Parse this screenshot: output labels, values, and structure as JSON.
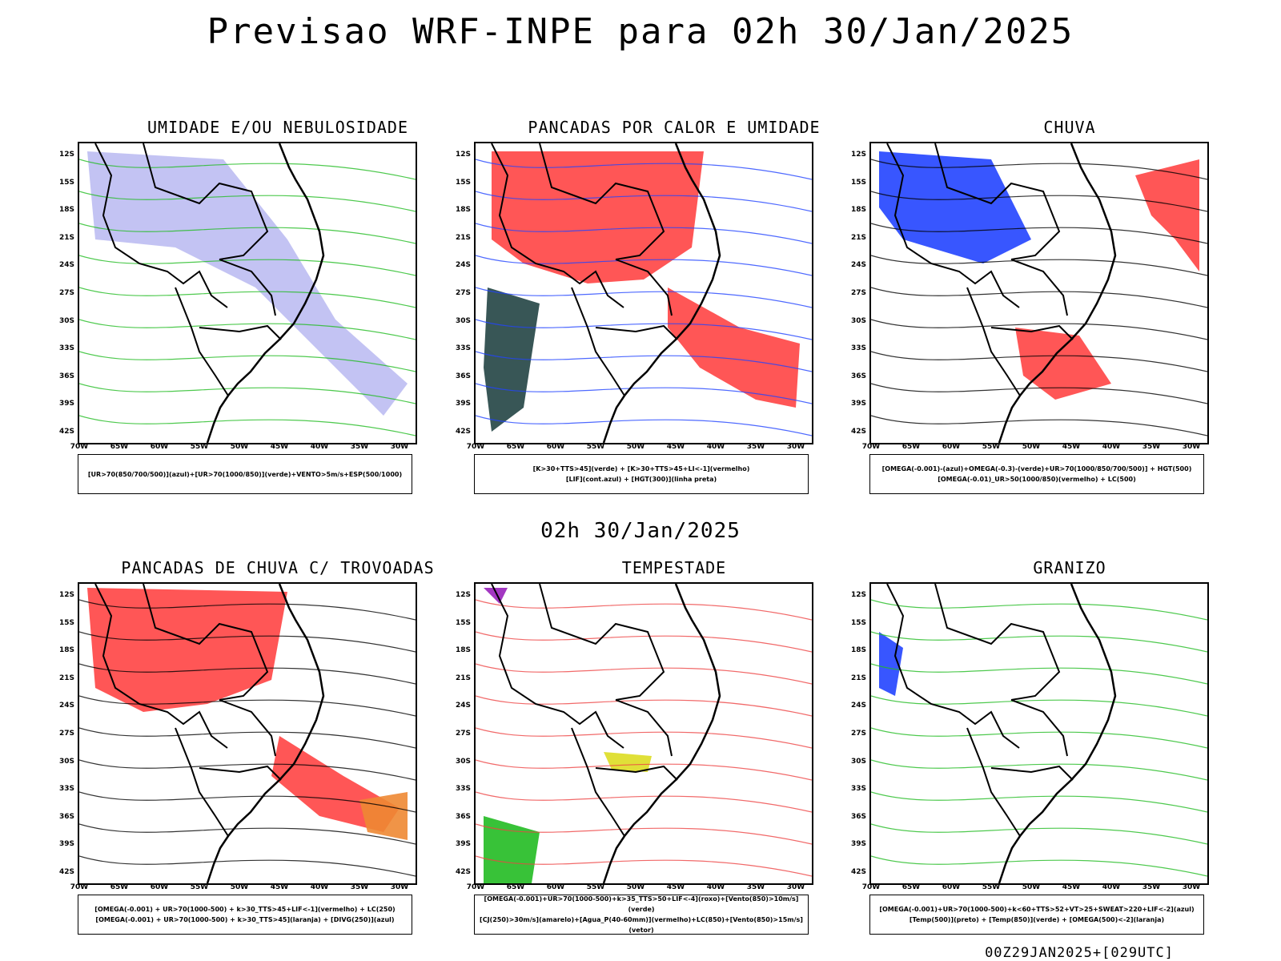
{
  "title": "Previsao WRF-INPE  para 02h 30/Jan/2025",
  "mid_title": "02h 30/Jan/2025",
  "footer": "00Z29JAN2025+[029UTC]",
  "lat_ticks": [
    "12S",
    "15S",
    "18S",
    "21S",
    "24S",
    "27S",
    "30S",
    "33S",
    "36S",
    "39S",
    "42S"
  ],
  "lon_ticks": [
    "70W",
    "65W",
    "60W",
    "55W",
    "50W",
    "45W",
    "40W",
    "35W",
    "30W"
  ],
  "panels": [
    {
      "title": "UMIDADE E/OU NEBULOSIDADE",
      "legend": [
        "[UR>70(850/700/500)](azul)+[UR>70(1000/850)](verde)+VENTO>5m/s+ESP(500/1000)"
      ]
    },
    {
      "title": "PANCADAS POR CALOR E UMIDADE",
      "legend": [
        "[K>30+TTS>45](verde) + [K>30+TTS>45+LI<-1](vermelho)",
        "[LIF](cont.azul) + [HGT(300)](linha preta)"
      ]
    },
    {
      "title": "CHUVA",
      "legend": [
        "[OMEGA(-0.001)-(azul)+OMEGA(-0.3)-(verde)+UR>70(1000/850/700/500)] + HGT(500)",
        "[OMEGA(-0.01)_UR>50(1000/850)(vermelho) + LC(500)"
      ]
    },
    {
      "title": "PANCADAS DE CHUVA C/ TROVOADAS",
      "legend": [
        "[OMEGA(-0.001) + UR>70(1000-500) + k>30_TTS>45+LIF<-1](vermelho) + LC(250)",
        "[OMEGA(-0.001) + UR>70(1000-500) + k>30_TTS>45](laranja) + [DIVG(250)](azul)"
      ]
    },
    {
      "title": "TEMPESTADE",
      "legend": [
        "[OMEGA(-0.001)+UR>70(1000-500)+k>35_TTS>50+LIF<-4](roxo)+[Vento(850)>10m/s](verde)",
        "[CJ(250)>30m/s](amarelo)+[Agua_P(40-60mm)](vermelho)+LC(850)+[Vento(850)>15m/s](vetor)"
      ]
    },
    {
      "title": "GRANIZO",
      "legend": [
        "[OMEGA(-0.001)+UR>70(1000-500)+k<60+TTS>52+VT>25+SWEAT>220+LIF<-2](azul)",
        "[Temp(500)](preto) + [Temp(850)](verde) + [OMEGA(500)<-2](laranja)"
      ]
    }
  ]
}
